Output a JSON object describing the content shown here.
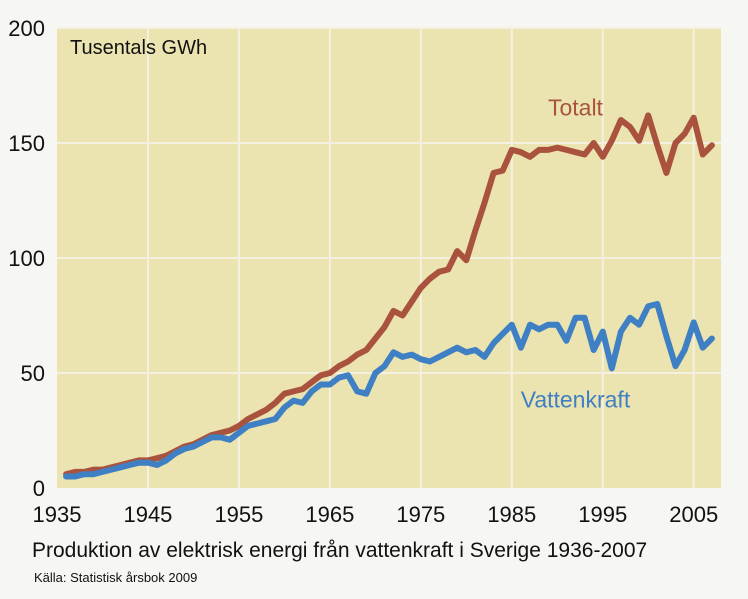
{
  "caption": "Produktion av elektrisk energi  från vattenkraft i Sverige 1936-2007",
  "source": "Källa: Statistisk årsbok 2009",
  "colors": {
    "background": "#ebe4b0",
    "grid": "#f4f1e2",
    "total": "#a9533f",
    "hydro": "#3f7fc4"
  },
  "chart_data": {
    "type": "line",
    "unit_label": "Tusentals GWh",
    "xlim": [
      1935,
      2008
    ],
    "ylim": [
      0,
      200
    ],
    "x_ticks": [
      1935,
      1945,
      1955,
      1965,
      1975,
      1985,
      1995,
      2005
    ],
    "y_ticks": [
      0,
      50,
      100,
      150,
      200
    ],
    "grid": true,
    "series": [
      {
        "name": "Totalt",
        "color": "#a9533f",
        "x": [
          1936,
          1937,
          1938,
          1939,
          1940,
          1941,
          1942,
          1943,
          1944,
          1945,
          1946,
          1947,
          1948,
          1949,
          1950,
          1951,
          1952,
          1953,
          1954,
          1955,
          1956,
          1957,
          1958,
          1959,
          1960,
          1961,
          1962,
          1963,
          1964,
          1965,
          1966,
          1967,
          1968,
          1969,
          1970,
          1971,
          1972,
          1973,
          1974,
          1975,
          1976,
          1977,
          1978,
          1979,
          1980,
          1981,
          1982,
          1983,
          1984,
          1985,
          1986,
          1987,
          1988,
          1989,
          1990,
          1991,
          1992,
          1993,
          1994,
          1995,
          1996,
          1997,
          1998,
          1999,
          2000,
          2001,
          2002,
          2003,
          2004,
          2005,
          2006,
          2007
        ],
        "y": [
          6,
          7,
          7,
          8,
          8,
          9,
          10,
          11,
          12,
          12,
          13,
          14,
          16,
          18,
          19,
          21,
          23,
          24,
          25,
          27,
          30,
          32,
          34,
          37,
          41,
          42,
          43,
          46,
          49,
          50,
          53,
          55,
          58,
          60,
          65,
          70,
          77,
          75,
          81,
          87,
          91,
          94,
          95,
          103,
          99,
          112,
          124,
          137,
          138,
          147,
          146,
          144,
          147,
          147,
          148,
          147,
          146,
          145,
          150,
          144,
          151,
          160,
          157,
          151,
          162,
          149,
          137,
          150,
          154,
          161,
          145,
          149
        ]
      },
      {
        "name": "Vattenkraft",
        "color": "#3f7fc4",
        "x": [
          1936,
          1937,
          1938,
          1939,
          1940,
          1941,
          1942,
          1943,
          1944,
          1945,
          1946,
          1947,
          1948,
          1949,
          1950,
          1951,
          1952,
          1953,
          1954,
          1955,
          1956,
          1957,
          1958,
          1959,
          1960,
          1961,
          1962,
          1963,
          1964,
          1965,
          1966,
          1967,
          1968,
          1969,
          1970,
          1971,
          1972,
          1973,
          1974,
          1975,
          1976,
          1977,
          1978,
          1979,
          1980,
          1981,
          1982,
          1983,
          1984,
          1985,
          1986,
          1987,
          1988,
          1989,
          1990,
          1991,
          1992,
          1993,
          1994,
          1995,
          1996,
          1997,
          1998,
          1999,
          2000,
          2001,
          2002,
          2003,
          2004,
          2005,
          2006,
          2007
        ],
        "y": [
          5,
          5,
          6,
          6,
          7,
          8,
          9,
          10,
          11,
          11,
          10,
          12,
          15,
          17,
          18,
          20,
          22,
          22,
          21,
          24,
          27,
          28,
          29,
          30,
          35,
          38,
          37,
          42,
          45,
          45,
          48,
          49,
          42,
          41,
          50,
          53,
          59,
          57,
          58,
          56,
          55,
          57,
          59,
          61,
          59,
          60,
          57,
          63,
          67,
          71,
          61,
          71,
          69,
          71,
          71,
          64,
          74,
          74,
          60,
          68,
          52,
          68,
          74,
          71,
          79,
          80,
          66,
          53,
          60,
          72,
          61,
          65
        ]
      }
    ],
    "annotations": [
      {
        "text": "Totalt",
        "x": 1992,
        "y": 162,
        "color": "#a9533f"
      },
      {
        "text": "Vattenkraft",
        "x": 1992,
        "y": 35,
        "color": "#3f7fc4"
      }
    ]
  }
}
